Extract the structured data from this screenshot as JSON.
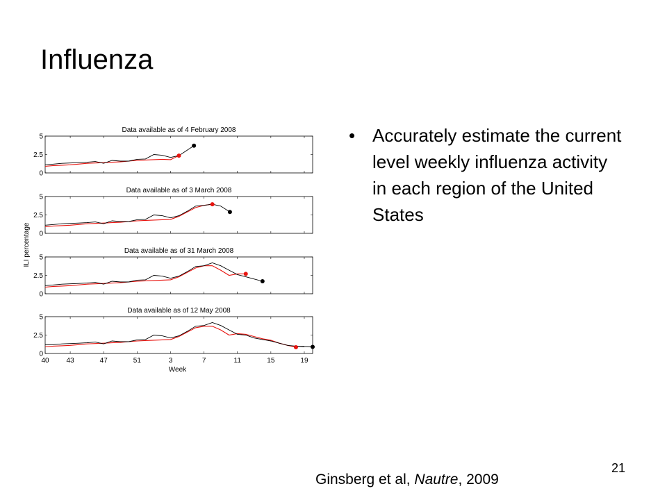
{
  "slide": {
    "title": "Influenza",
    "bullets": [
      "Accurately estimate the current level weekly influenza activity in each region of the United States"
    ],
    "bullet_glyph": "•",
    "page_number": "21",
    "citation": {
      "authors": "Ginsberg et al, ",
      "journal": "Nautre",
      "year": ", 2009"
    }
  },
  "chart_data": {
    "type": "line",
    "xlabel": "Week",
    "ylabel": "ILI percentage",
    "x_tick_labels": [
      "40",
      "43",
      "47",
      "51",
      "3",
      "7",
      "11",
      "15",
      "19"
    ],
    "x_tick_index": [
      0,
      3,
      7,
      11,
      15,
      19,
      23,
      27,
      31
    ],
    "y_ticks": [
      0,
      2.5,
      5
    ],
    "y_tick_labels": [
      "0",
      "2.5",
      "5"
    ],
    "ylim": [
      0,
      5
    ],
    "week_index_range": [
      0,
      32
    ],
    "colors": {
      "observed": "#000000",
      "estimate": "#e8140f"
    },
    "panels": [
      {
        "title": "Data available as of 4 February 2008",
        "observed": [
          [
            0,
            1.1
          ],
          [
            1,
            1.2
          ],
          [
            2,
            1.3
          ],
          [
            3,
            1.35
          ],
          [
            4,
            1.4
          ],
          [
            5,
            1.45
          ],
          [
            6,
            1.55
          ],
          [
            7,
            1.3
          ],
          [
            8,
            1.7
          ],
          [
            9,
            1.6
          ],
          [
            10,
            1.6
          ],
          [
            11,
            1.85
          ],
          [
            12,
            1.9
          ],
          [
            13,
            2.5
          ],
          [
            14,
            2.4
          ],
          [
            15,
            2.1
          ],
          [
            16,
            2.35
          ]
        ],
        "estimate": [
          [
            0,
            0.9
          ],
          [
            1,
            1.0
          ],
          [
            2,
            1.05
          ],
          [
            3,
            1.1
          ],
          [
            4,
            1.2
          ],
          [
            5,
            1.3
          ],
          [
            6,
            1.35
          ],
          [
            7,
            1.4
          ],
          [
            8,
            1.45
          ],
          [
            9,
            1.5
          ],
          [
            10,
            1.6
          ],
          [
            11,
            1.7
          ],
          [
            12,
            1.75
          ],
          [
            13,
            1.8
          ],
          [
            14,
            1.85
          ],
          [
            15,
            1.8
          ],
          [
            16,
            2.35
          ]
        ],
        "extension": [
          [
            16,
            2.35
          ],
          [
            17.8,
            3.7
          ]
        ],
        "red_dot": [
          16,
          2.35
        ],
        "black_dot": [
          17.8,
          3.7
        ]
      },
      {
        "title": "Data available as of 3 March 2008",
        "observed": [
          [
            0,
            1.1
          ],
          [
            1,
            1.2
          ],
          [
            2,
            1.3
          ],
          [
            3,
            1.35
          ],
          [
            4,
            1.4
          ],
          [
            5,
            1.45
          ],
          [
            6,
            1.55
          ],
          [
            7,
            1.3
          ],
          [
            8,
            1.7
          ],
          [
            9,
            1.6
          ],
          [
            10,
            1.6
          ],
          [
            11,
            1.85
          ],
          [
            12,
            1.9
          ],
          [
            13,
            2.5
          ],
          [
            14,
            2.4
          ],
          [
            15,
            2.1
          ],
          [
            16,
            2.4
          ],
          [
            17,
            3.0
          ],
          [
            18,
            3.7
          ],
          [
            19,
            3.8
          ],
          [
            20,
            3.95
          ]
        ],
        "estimate": [
          [
            0,
            0.9
          ],
          [
            1,
            1.0
          ],
          [
            2,
            1.05
          ],
          [
            3,
            1.1
          ],
          [
            4,
            1.2
          ],
          [
            5,
            1.3
          ],
          [
            6,
            1.35
          ],
          [
            7,
            1.4
          ],
          [
            8,
            1.45
          ],
          [
            9,
            1.5
          ],
          [
            10,
            1.6
          ],
          [
            11,
            1.7
          ],
          [
            12,
            1.75
          ],
          [
            13,
            1.8
          ],
          [
            14,
            1.85
          ],
          [
            15,
            1.9
          ],
          [
            16,
            2.3
          ],
          [
            17,
            2.9
          ],
          [
            18,
            3.5
          ],
          [
            19,
            3.8
          ],
          [
            20,
            3.95
          ]
        ],
        "extension": [
          [
            20,
            3.95
          ],
          [
            21,
            3.7
          ],
          [
            22.1,
            2.9
          ]
        ],
        "red_dot": [
          20,
          3.95
        ],
        "black_dot": [
          22.1,
          2.9
        ]
      },
      {
        "title": "Data available as of 31 March 2008",
        "observed": [
          [
            0,
            1.1
          ],
          [
            1,
            1.2
          ],
          [
            2,
            1.3
          ],
          [
            3,
            1.35
          ],
          [
            4,
            1.4
          ],
          [
            5,
            1.45
          ],
          [
            6,
            1.55
          ],
          [
            7,
            1.3
          ],
          [
            8,
            1.7
          ],
          [
            9,
            1.6
          ],
          [
            10,
            1.6
          ],
          [
            11,
            1.85
          ],
          [
            12,
            1.9
          ],
          [
            13,
            2.5
          ],
          [
            14,
            2.4
          ],
          [
            15,
            2.1
          ],
          [
            16,
            2.4
          ],
          [
            17,
            3.0
          ],
          [
            18,
            3.7
          ],
          [
            19,
            3.8
          ],
          [
            20,
            4.2
          ],
          [
            21,
            3.8
          ],
          [
            22,
            3.2
          ],
          [
            23,
            2.6
          ],
          [
            24,
            2.3
          ]
        ],
        "estimate": [
          [
            0,
            0.9
          ],
          [
            1,
            1.0
          ],
          [
            2,
            1.05
          ],
          [
            3,
            1.1
          ],
          [
            4,
            1.2
          ],
          [
            5,
            1.3
          ],
          [
            6,
            1.35
          ],
          [
            7,
            1.4
          ],
          [
            8,
            1.45
          ],
          [
            9,
            1.5
          ],
          [
            10,
            1.6
          ],
          [
            11,
            1.7
          ],
          [
            12,
            1.75
          ],
          [
            13,
            1.8
          ],
          [
            14,
            1.85
          ],
          [
            15,
            1.9
          ],
          [
            16,
            2.3
          ],
          [
            17,
            2.9
          ],
          [
            18,
            3.5
          ],
          [
            19,
            3.8
          ],
          [
            20,
            3.8
          ],
          [
            21,
            3.2
          ],
          [
            22,
            2.5
          ],
          [
            23,
            2.7
          ],
          [
            24,
            2.7
          ]
        ],
        "extension": [
          [
            24,
            2.3
          ],
          [
            25,
            2.0
          ],
          [
            26,
            1.7
          ]
        ],
        "red_dot": [
          24,
          2.7
        ],
        "black_dot": [
          26,
          1.7
        ]
      },
      {
        "title": "Data available as of 12 May 2008",
        "observed": [
          [
            0,
            1.2
          ],
          [
            1,
            1.2
          ],
          [
            2,
            1.3
          ],
          [
            3,
            1.35
          ],
          [
            4,
            1.4
          ],
          [
            5,
            1.45
          ],
          [
            6,
            1.55
          ],
          [
            7,
            1.3
          ],
          [
            8,
            1.7
          ],
          [
            9,
            1.6
          ],
          [
            10,
            1.6
          ],
          [
            11,
            1.85
          ],
          [
            12,
            1.9
          ],
          [
            13,
            2.5
          ],
          [
            14,
            2.4
          ],
          [
            15,
            2.1
          ],
          [
            16,
            2.4
          ],
          [
            17,
            3.0
          ],
          [
            18,
            3.7
          ],
          [
            19,
            3.8
          ],
          [
            20,
            4.2
          ],
          [
            21,
            3.8
          ],
          [
            22,
            3.2
          ],
          [
            23,
            2.6
          ],
          [
            24,
            2.5
          ],
          [
            25,
            2.1
          ],
          [
            26,
            1.9
          ],
          [
            27,
            1.7
          ],
          [
            28,
            1.4
          ],
          [
            29,
            1.1
          ],
          [
            30,
            1.0
          ],
          [
            31,
            0.9
          ]
        ],
        "estimate": [
          [
            0,
            0.9
          ],
          [
            1,
            1.0
          ],
          [
            2,
            1.05
          ],
          [
            3,
            1.1
          ],
          [
            4,
            1.2
          ],
          [
            5,
            1.3
          ],
          [
            6,
            1.35
          ],
          [
            7,
            1.4
          ],
          [
            8,
            1.45
          ],
          [
            9,
            1.5
          ],
          [
            10,
            1.6
          ],
          [
            11,
            1.7
          ],
          [
            12,
            1.75
          ],
          [
            13,
            1.8
          ],
          [
            14,
            1.85
          ],
          [
            15,
            1.9
          ],
          [
            16,
            2.3
          ],
          [
            17,
            2.9
          ],
          [
            18,
            3.5
          ],
          [
            19,
            3.7
          ],
          [
            20,
            3.7
          ],
          [
            21,
            3.2
          ],
          [
            22,
            2.5
          ],
          [
            23,
            2.7
          ],
          [
            24,
            2.6
          ],
          [
            25,
            2.3
          ],
          [
            26,
            2.0
          ],
          [
            27,
            1.8
          ],
          [
            28,
            1.4
          ],
          [
            29,
            1.1
          ],
          [
            30,
            0.85
          ]
        ],
        "extension": [
          [
            30,
            1.0
          ],
          [
            32,
            0.9
          ]
        ],
        "red_dot": [
          30,
          0.85
        ],
        "black_dot": [
          32,
          0.9
        ]
      }
    ]
  }
}
